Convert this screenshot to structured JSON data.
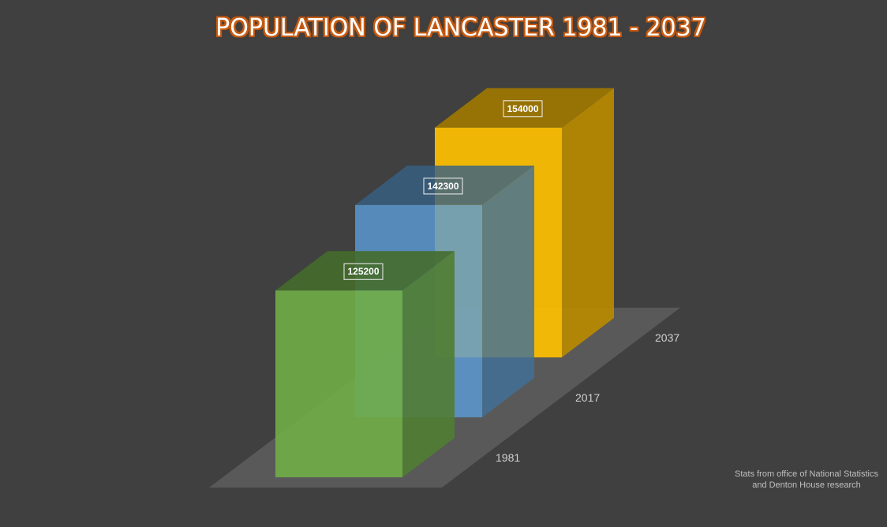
{
  "chart_data": {
    "type": "bar",
    "title": "POPULATION OF LANCASTER 1981 - 2037",
    "categories": [
      "1981",
      "2017",
      "2037"
    ],
    "values": [
      125200,
      142300,
      154000
    ],
    "data_labels": [
      "125200",
      "142300",
      "154000"
    ],
    "colors": [
      "#70ad47",
      "#5b9bd5",
      "#ffc000"
    ],
    "ylim": [
      0,
      160000
    ],
    "grid": false,
    "legend": "none",
    "style": "3d-column"
  },
  "source_note": {
    "line1": "Stats from office of National Statistics",
    "line2": "and Denton House research"
  }
}
